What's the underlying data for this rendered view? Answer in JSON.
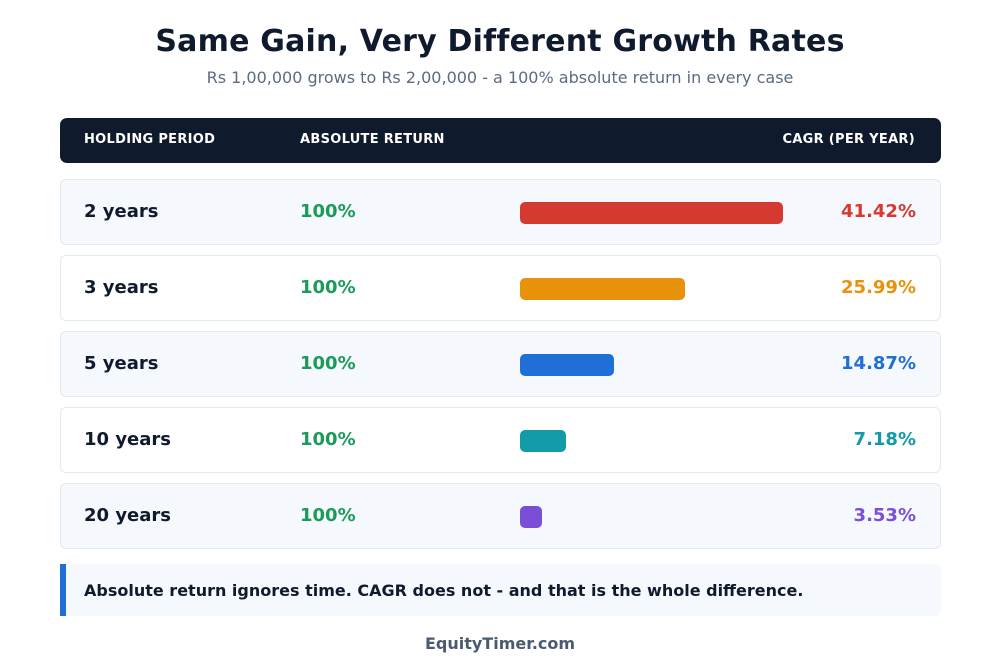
{
  "chart_data": {
    "type": "bar",
    "title": "Same Gain, Very Different Growth Rates",
    "subtitle": "Rs 1,00,000 grows to Rs 2,00,000 - a 100% absolute return in every case",
    "columns": [
      "HOLDING PERIOD",
      "ABSOLUTE RETURN",
      "CAGR (PER YEAR)"
    ],
    "categories": [
      "2 years",
      "3 years",
      "5 years",
      "10 years",
      "20 years"
    ],
    "absolute_return": [
      "100%",
      "100%",
      "100%",
      "100%",
      "100%"
    ],
    "values": [
      41.42,
      25.99,
      14.87,
      7.18,
      3.53
    ],
    "value_labels": [
      "41.42%",
      "25.99%",
      "14.87%",
      "7.18%",
      "3.53%"
    ],
    "colors": [
      "#d43a30",
      "#e8920c",
      "#1f6fd6",
      "#129aa8",
      "#7b4ed8"
    ],
    "note": "Absolute return ignores time. CAGR does not - and that is the whole difference.",
    "footer": "EquityTimer.com"
  },
  "theme": {
    "header_bg": "#0f1b2d",
    "absolute_color": "#1b9a5a",
    "accent": "#1f6fd6"
  }
}
